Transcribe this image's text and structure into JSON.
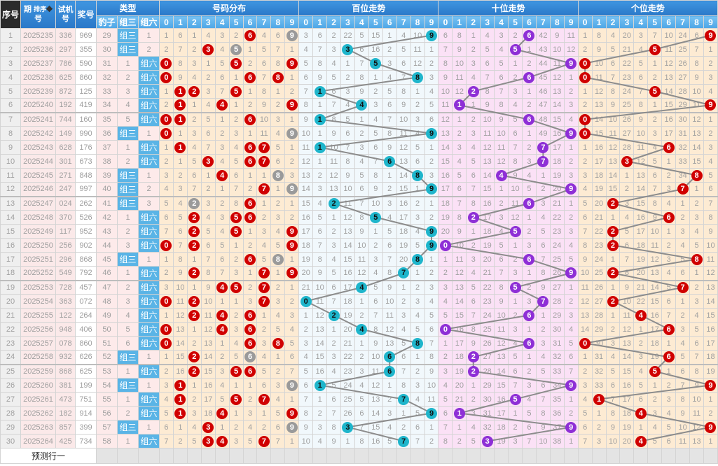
{
  "header": {
    "seq": "序号",
    "issue_a": "期",
    "issue_b": "号",
    "sort": "排序",
    "trial_a": "试机",
    "trial_b": "号",
    "prize": "奖号",
    "type": "类型",
    "baozi": "豹子",
    "zusan": "组三",
    "zuliu": "组六",
    "dist": "号码分布",
    "hundreds": "百位走势",
    "tens": "十位走势",
    "units": "个位走势",
    "digits": [
      "0",
      "1",
      "2",
      "3",
      "4",
      "5",
      "6",
      "7",
      "8",
      "9"
    ]
  },
  "rows": [
    {
      "seq": "1",
      "issue": "2025235",
      "trial": "336",
      "prize": "969"
    },
    {
      "seq": "2",
      "issue": "2025236",
      "trial": "297",
      "prize": "355"
    },
    {
      "seq": "3",
      "issue": "2025237",
      "trial": "786",
      "prize": "590"
    },
    {
      "seq": "4",
      "issue": "2025238",
      "trial": "625",
      "prize": "860"
    },
    {
      "seq": "5",
      "issue": "2025239",
      "trial": "872",
      "prize": "125"
    },
    {
      "seq": "6",
      "issue": "2025240",
      "trial": "192",
      "prize": "419"
    },
    {
      "seq": "7",
      "issue": "2025241",
      "trial": "744",
      "prize": "160"
    },
    {
      "seq": "8",
      "issue": "2025242",
      "trial": "149",
      "prize": "990"
    },
    {
      "seq": "9",
      "issue": "2025243",
      "trial": "628",
      "prize": "176"
    },
    {
      "seq": "10",
      "issue": "2025244",
      "trial": "301",
      "prize": "673"
    },
    {
      "seq": "11",
      "issue": "2025245",
      "trial": "271",
      "prize": "848"
    },
    {
      "seq": "12",
      "issue": "2025246",
      "trial": "247",
      "prize": "997"
    },
    {
      "seq": "13",
      "issue": "2025247",
      "trial": "024",
      "prize": "262"
    },
    {
      "seq": "14",
      "issue": "2025248",
      "trial": "370",
      "prize": "526"
    },
    {
      "seq": "15",
      "issue": "2025249",
      "trial": "117",
      "prize": "952"
    },
    {
      "seq": "16",
      "issue": "2025250",
      "trial": "256",
      "prize": "902"
    },
    {
      "seq": "17",
      "issue": "2025251",
      "trial": "296",
      "prize": "868"
    },
    {
      "seq": "18",
      "issue": "2025252",
      "trial": "549",
      "prize": "792"
    },
    {
      "seq": "19",
      "issue": "2025253",
      "trial": "728",
      "prize": "457"
    },
    {
      "seq": "20",
      "issue": "2025254",
      "trial": "363",
      "prize": "072"
    },
    {
      "seq": "21",
      "issue": "2025255",
      "trial": "122",
      "prize": "264"
    },
    {
      "seq": "22",
      "issue": "2025256",
      "trial": "948",
      "prize": "406"
    },
    {
      "seq": "23",
      "issue": "2025257",
      "trial": "078",
      "prize": "860"
    },
    {
      "seq": "24",
      "issue": "2025258",
      "trial": "932",
      "prize": "626"
    },
    {
      "seq": "25",
      "issue": "2025259",
      "trial": "868",
      "prize": "625"
    },
    {
      "seq": "26",
      "issue": "2025260",
      "trial": "381",
      "prize": "199"
    },
    {
      "seq": "27",
      "issue": "2025261",
      "trial": "473",
      "prize": "751"
    },
    {
      "seq": "28",
      "issue": "2025262",
      "trial": "182",
      "prize": "914"
    },
    {
      "seq": "29",
      "issue": "2025263",
      "trial": "857",
      "prize": "399"
    },
    {
      "seq": "30",
      "issue": "2025264",
      "trial": "425",
      "prize": "734"
    }
  ],
  "first_row_omissions": {
    "type": [
      29,
      0,
      1
    ],
    "dist": [
      1,
      6,
      1,
      4,
      3,
      2,
      0,
      4,
      6,
      0
    ],
    "hundreds": [
      3,
      6,
      2,
      22,
      5,
      15,
      1,
      4,
      10,
      0
    ],
    "tens": [
      6,
      8,
      1,
      4,
      3,
      2,
      0,
      42,
      9,
      11
    ],
    "units": [
      1,
      8,
      4,
      20,
      3,
      7,
      10,
      24,
      6,
      0
    ]
  },
  "footer": "预测行一",
  "colors": {
    "dist_ball": "#d00000",
    "repeat_ball": "#9a9a9a",
    "hundreds_ball": "#1eb5cb",
    "tens_ball": "#8e2fd6",
    "units_ball": "#d00000",
    "type_hit": "#5ab4e6",
    "trend_line": "#8c8c8c"
  }
}
